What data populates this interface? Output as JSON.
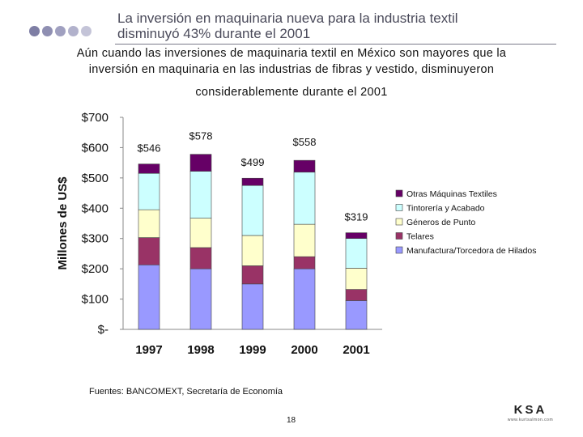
{
  "header": {
    "title_line1": "La inversión en maquinaria nueva para la industria textil",
    "title_line2": "disminuyó 43% durante el 2001",
    "subtitle_line1": "Aún cuando las inversiones de maquinaria textil en México son mayores que la",
    "subtitle_line2": "inversión en maquinaria en las industrias de fibras y vestido, disminuyeron",
    "subtitle_line3": "considerablemente durante el 2001",
    "dot_colors": [
      "#7e7ea4",
      "#8f8fb2",
      "#a0a0c0",
      "#b2b2cc",
      "#c4c4d8"
    ]
  },
  "chart_data": {
    "type": "bar",
    "stacked": true,
    "categories": [
      "1997",
      "1998",
      "1999",
      "2000",
      "2001"
    ],
    "series": [
      {
        "name": "Manufactura/Torcedora de Hilados",
        "color": "#9999ff",
        "values": [
          213,
          200,
          150,
          200,
          95
        ]
      },
      {
        "name": "Telares",
        "color": "#993366",
        "values": [
          90,
          70,
          60,
          40,
          37
        ]
      },
      {
        "name": "Géneros de Punto",
        "color": "#ffffcc",
        "values": [
          92,
          97,
          100,
          107,
          70
        ]
      },
      {
        "name": "Tintorería y Acabado",
        "color": "#ccffff",
        "values": [
          120,
          155,
          165,
          172,
          98
        ]
      },
      {
        "name": "Otras Máquinas Textiles",
        "color": "#660066",
        "values": [
          31,
          56,
          24,
          39,
          19
        ]
      }
    ],
    "totals": [
      "$546",
      "$578",
      "$499",
      "$558",
      "$319"
    ],
    "ylabel": "Millones de US$",
    "ylim": [
      0,
      700
    ],
    "yticks": [
      0,
      100,
      200,
      300,
      400,
      500,
      600,
      700
    ],
    "ytick_labels": [
      "$-",
      "$100",
      "$200",
      "$300",
      "$400",
      "$500",
      "$600",
      "$700"
    ],
    "legend_position": "right",
    "grid": false
  },
  "footer": {
    "source": "Fuentes: BANCOMEXT, Secretaría de Economía",
    "page_number": "18",
    "logo_text": "KSA",
    "logo_sub": "www.kurtsalmon.com"
  }
}
